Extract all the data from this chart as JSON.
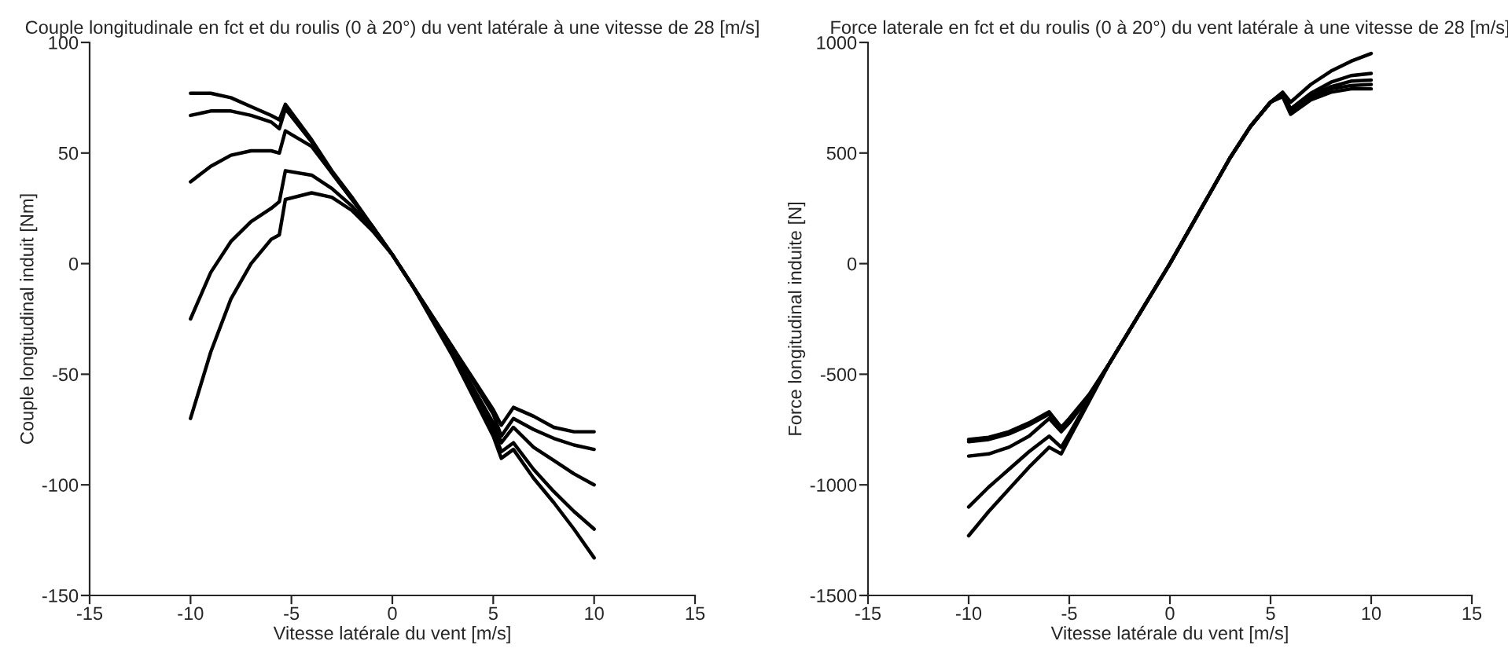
{
  "chart_data": [
    {
      "type": "line",
      "title": "Couple longitudinale en fct et du roulis (0 à 20°) du vent latérale à une vitesse de 28 [m/s]",
      "xlabel": "Vitesse latérale du vent [m/s]",
      "ylabel": "Couple longitudinal induit [Nm]",
      "xlim": [
        -15,
        15
      ],
      "xticks": [
        -15,
        -10,
        -5,
        0,
        5,
        10,
        15
      ],
      "ylim": [
        -150,
        100
      ],
      "yticks": [
        -150,
        -100,
        -50,
        0,
        50,
        100
      ],
      "grid": false,
      "marker": "none",
      "line_style": "solid",
      "series": [
        {
          "color": "#000000",
          "x": [
            -10,
            -9,
            -8,
            -7,
            -6,
            -5.6,
            -5.3,
            -4,
            -3,
            -2,
            -1,
            0,
            1,
            2,
            3,
            4,
            5,
            5.4,
            6,
            7,
            8,
            9,
            10
          ],
          "values": [
            77,
            77,
            75,
            71,
            67,
            65,
            72,
            56,
            42,
            30,
            17,
            4,
            -10,
            -24,
            -38,
            -52,
            -66,
            -73,
            -65,
            -69,
            -74,
            -76,
            -76
          ]
        },
        {
          "color": "#000000",
          "x": [
            -10,
            -9,
            -8,
            -7,
            -6,
            -5.6,
            -5.3,
            -4,
            -3,
            -2,
            -1,
            0,
            1,
            2,
            3,
            4,
            5,
            5.4,
            6,
            7,
            8,
            9,
            10
          ],
          "values": [
            67,
            69,
            69,
            67,
            64,
            61,
            70,
            55,
            41,
            29,
            17,
            4,
            -10,
            -24,
            -38,
            -53,
            -68,
            -78,
            -70,
            -75,
            -79,
            -82,
            -84
          ]
        },
        {
          "color": "#000000",
          "x": [
            -10,
            -9,
            -8,
            -7,
            -6,
            -5.6,
            -5.3,
            -4,
            -3,
            -2,
            -1,
            0,
            1,
            2,
            3,
            4,
            5,
            5.4,
            6,
            7,
            8,
            9,
            10
          ],
          "values": [
            37,
            44,
            49,
            51,
            51,
            50,
            60,
            53,
            41,
            29,
            17,
            4,
            -10,
            -25,
            -40,
            -56,
            -72,
            -81,
            -74,
            -83,
            -89,
            -95,
            -100
          ]
        },
        {
          "color": "#000000",
          "x": [
            -10,
            -9,
            -8,
            -7,
            -6,
            -5.6,
            -5.3,
            -4,
            -3,
            -2,
            -1,
            0,
            1,
            2,
            3,
            4,
            5,
            5.4,
            6,
            7,
            8,
            9,
            10
          ],
          "values": [
            -25,
            -4,
            10,
            19,
            25,
            28,
            42,
            40,
            34,
            26,
            16,
            4,
            -10,
            -25,
            -41,
            -58,
            -75,
            -85,
            -81,
            -93,
            -103,
            -112,
            -120
          ]
        },
        {
          "color": "#000000",
          "x": [
            -10,
            -9,
            -8,
            -7,
            -6,
            -5.6,
            -5.3,
            -4,
            -3,
            -2,
            -1,
            0,
            1,
            2,
            3,
            4,
            5,
            5.4,
            6,
            7,
            8,
            9,
            10
          ],
          "values": [
            -70,
            -40,
            -16,
            0,
            11,
            13,
            29,
            32,
            30,
            24,
            15,
            4,
            -10,
            -26,
            -42,
            -60,
            -78,
            -88,
            -84,
            -97,
            -108,
            -120,
            -133
          ]
        }
      ]
    },
    {
      "type": "line",
      "title": "Force laterale en fct et du roulis (0 à 20°) du vent latérale à une vitesse de 28 [m/s]",
      "xlabel": "Vitesse latérale du vent [m/s]",
      "ylabel": "Force longitudinal induite [N]",
      "xlim": [
        -15,
        15
      ],
      "xticks": [
        -15,
        -10,
        -5,
        0,
        5,
        10,
        15
      ],
      "ylim": [
        -1500,
        1000
      ],
      "yticks": [
        -1500,
        -1000,
        -500,
        0,
        500,
        1000
      ],
      "grid": false,
      "marker": "none",
      "line_style": "solid",
      "series": [
        {
          "color": "#000000",
          "x": [
            -10,
            -9,
            -8,
            -7,
            -6,
            -5.4,
            -5,
            -4,
            -3,
            -2,
            -1,
            0,
            1,
            2,
            3,
            4,
            5,
            5.6,
            6,
            7,
            8,
            9,
            10
          ],
          "values": [
            -1230,
            -1120,
            -1020,
            -920,
            -830,
            -860,
            -790,
            -620,
            -450,
            -300,
            -150,
            0,
            160,
            320,
            480,
            620,
            730,
            775,
            730,
            810,
            870,
            915,
            950
          ]
        },
        {
          "color": "#000000",
          "x": [
            -10,
            -9,
            -8,
            -7,
            -6,
            -5.4,
            -5,
            -4,
            -3,
            -2,
            -1,
            0,
            1,
            2,
            3,
            4,
            5,
            5.6,
            6,
            7,
            8,
            9,
            10
          ],
          "values": [
            -1100,
            -1010,
            -930,
            -850,
            -780,
            -830,
            -770,
            -610,
            -450,
            -300,
            -150,
            0,
            160,
            320,
            480,
            620,
            730,
            770,
            700,
            770,
            820,
            850,
            860
          ]
        },
        {
          "color": "#000000",
          "x": [
            -10,
            -9,
            -8,
            -7,
            -6,
            -5.4,
            -5,
            -4,
            -3,
            -2,
            -1,
            0,
            1,
            2,
            3,
            4,
            5,
            5.6,
            6,
            7,
            8,
            9,
            10
          ],
          "values": [
            -870,
            -860,
            -830,
            -780,
            -700,
            -760,
            -720,
            -600,
            -450,
            -300,
            -150,
            0,
            160,
            320,
            480,
            620,
            730,
            765,
            690,
            760,
            800,
            825,
            830
          ]
        },
        {
          "color": "#000000",
          "x": [
            -10,
            -9,
            -8,
            -7,
            -6,
            -5.4,
            -5,
            -4,
            -3,
            -2,
            -1,
            0,
            1,
            2,
            3,
            4,
            5,
            5.6,
            6,
            7,
            8,
            9,
            10
          ],
          "values": [
            -805,
            -795,
            -770,
            -730,
            -680,
            -750,
            -710,
            -595,
            -450,
            -300,
            -150,
            0,
            160,
            320,
            480,
            620,
            730,
            760,
            680,
            750,
            790,
            805,
            810
          ]
        },
        {
          "color": "#000000",
          "x": [
            -10,
            -9,
            -8,
            -7,
            -6,
            -5.4,
            -5,
            -4,
            -3,
            -2,
            -1,
            0,
            1,
            2,
            3,
            4,
            5,
            5.6,
            6,
            7,
            8,
            9,
            10
          ],
          "values": [
            -795,
            -785,
            -760,
            -720,
            -670,
            -740,
            -700,
            -590,
            -450,
            -300,
            -150,
            0,
            160,
            320,
            480,
            620,
            730,
            755,
            675,
            740,
            775,
            790,
            790
          ]
        }
      ]
    }
  ]
}
